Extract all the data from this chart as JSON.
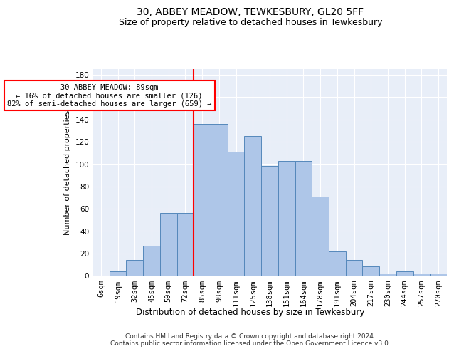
{
  "title": "30, ABBEY MEADOW, TEWKESBURY, GL20 5FF",
  "subtitle": "Size of property relative to detached houses in Tewkesbury",
  "xlabel": "Distribution of detached houses by size in Tewkesbury",
  "ylabel": "Number of detached properties",
  "categories": [
    "6sqm",
    "19sqm",
    "32sqm",
    "45sqm",
    "59sqm",
    "72sqm",
    "85sqm",
    "98sqm",
    "111sqm",
    "125sqm",
    "138sqm",
    "151sqm",
    "164sqm",
    "178sqm",
    "191sqm",
    "204sqm",
    "217sqm",
    "230sqm",
    "244sqm",
    "257sqm",
    "270sqm"
  ],
  "values": [
    0,
    4,
    14,
    27,
    56,
    56,
    136,
    136,
    111,
    125,
    98,
    103,
    103,
    71,
    22,
    14,
    8,
    2,
    4,
    2,
    2
  ],
  "bar_color": "#aec6e8",
  "bar_edge_color": "#5588bb",
  "property_line_index": 6,
  "property_line_color": "red",
  "annotation_text": "30 ABBEY MEADOW: 89sqm\n← 16% of detached houses are smaller (126)\n82% of semi-detached houses are larger (659) →",
  "annotation_box_color": "white",
  "annotation_box_edge_color": "red",
  "ylim": [
    0,
    185
  ],
  "yticks": [
    0,
    20,
    40,
    60,
    80,
    100,
    120,
    140,
    160,
    180
  ],
  "background_color": "#e8eef8",
  "footer_text": "Contains HM Land Registry data © Crown copyright and database right 2024.\nContains public sector information licensed under the Open Government Licence v3.0.",
  "title_fontsize": 10,
  "subtitle_fontsize": 9,
  "xlabel_fontsize": 8.5,
  "ylabel_fontsize": 8,
  "tick_fontsize": 7.5,
  "footer_fontsize": 6.5,
  "annotation_fontsize": 7.5
}
